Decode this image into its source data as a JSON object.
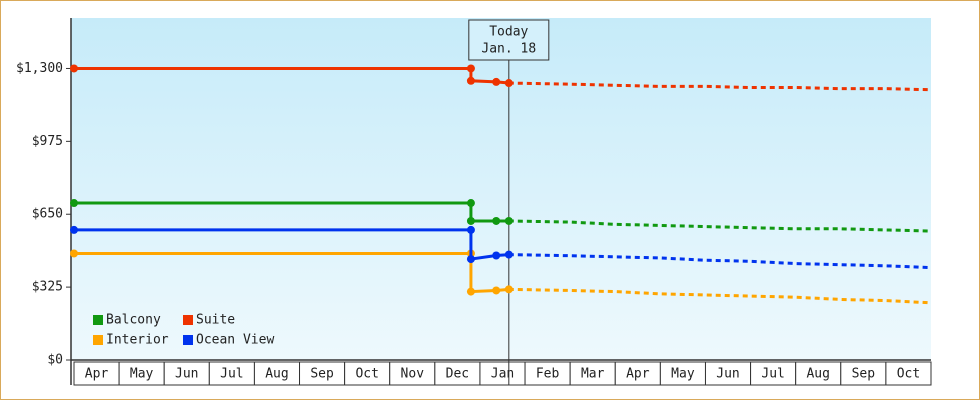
{
  "chart_data": {
    "type": "line",
    "categories": [
      "Apr",
      "May",
      "Jun",
      "Jul",
      "Aug",
      "Sep",
      "Oct",
      "Nov",
      "Dec",
      "Jan",
      "Feb",
      "Mar",
      "Apr",
      "May",
      "Jun",
      "Jul",
      "Aug",
      "Sep",
      "Oct"
    ],
    "xlim": [
      0,
      19
    ],
    "ylim": [
      0,
      1525
    ],
    "yticks": [
      {
        "value": 0,
        "label": "$0"
      },
      {
        "value": 325,
        "label": "$325"
      },
      {
        "value": 650,
        "label": "$650"
      },
      {
        "value": 975,
        "label": "$975"
      },
      {
        "value": 1300,
        "label": "$1,300"
      }
    ],
    "today_x": 9.64,
    "today_label": "Today",
    "today_date": "Jan. 18",
    "legend": "lower left",
    "series": [
      {
        "name": "Balcony",
        "color": "#119911",
        "x": [
          0,
          8.8,
          8.8,
          9.36,
          9.64
        ],
        "values": [
          700,
          700,
          620,
          620,
          620
        ],
        "forecast_x": [
          9.64,
          11,
          12,
          13,
          14,
          15,
          16,
          17,
          18,
          19
        ],
        "forecast": [
          620,
          615,
          605,
          600,
          595,
          590,
          585,
          585,
          580,
          575
        ]
      },
      {
        "name": "Suite",
        "color": "#ee3300",
        "x": [
          0,
          8.8,
          8.8,
          9.36,
          9.64
        ],
        "values": [
          1300,
          1300,
          1245,
          1240,
          1235
        ],
        "forecast_x": [
          9.64,
          11,
          12,
          13,
          14,
          15,
          16,
          17,
          18,
          19
        ],
        "forecast": [
          1235,
          1230,
          1225,
          1220,
          1220,
          1215,
          1215,
          1210,
          1210,
          1205
        ]
      },
      {
        "name": "Interior",
        "color": "#ffa500",
        "x": [
          0,
          8.8,
          8.8,
          9.36,
          9.64
        ],
        "values": [
          475,
          475,
          305,
          310,
          315
        ],
        "forecast_x": [
          9.64,
          11,
          12,
          13,
          14,
          15,
          16,
          17,
          18,
          19
        ],
        "forecast": [
          315,
          310,
          305,
          295,
          290,
          285,
          280,
          270,
          265,
          255
        ]
      },
      {
        "name": "Ocean View",
        "color": "#0033ee",
        "x": [
          0,
          8.8,
          8.8,
          9.36,
          9.64
        ],
        "values": [
          580,
          580,
          450,
          466,
          470
        ],
        "forecast_x": [
          9.64,
          11,
          12,
          13,
          14,
          15,
          16,
          17,
          18,
          19
        ],
        "forecast": [
          470,
          465,
          460,
          455,
          445,
          440,
          430,
          425,
          420,
          412
        ]
      }
    ]
  }
}
